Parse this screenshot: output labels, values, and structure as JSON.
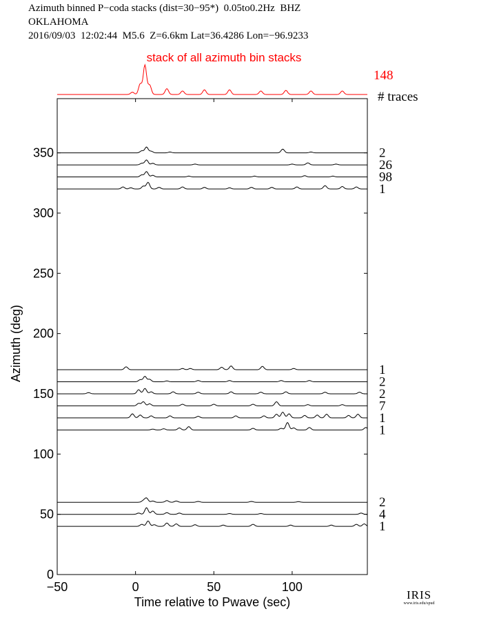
{
  "header": {
    "line1": "Azimuth binned P−coda stacks (dist=30−95*)  0.05to0.2Hz  BHZ",
    "line2": "OKLAHOMA",
    "line3": "2016/09/03  12:02:44  M5.6  Z=6.6km Lat=36.4286 Lon=−96.9233"
  },
  "logo": {
    "name": "IRIS",
    "url_text": "www.iris.edu/spud"
  },
  "colors": {
    "stack": "#ff0000",
    "trace": "#000000",
    "axis": "#000000"
  },
  "chart_data": {
    "type": "line",
    "title": "stack of all azimuth bin stacks",
    "xlabel": "Time relative to Pwave (sec)",
    "ylabel": "Azimuth (deg)",
    "xlim": [
      -50,
      148
    ],
    "ylim": [
      0,
      395
    ],
    "xticks": [
      -50,
      0,
      50,
      100
    ],
    "yticks": [
      0,
      50,
      100,
      150,
      200,
      250,
      300,
      350
    ],
    "xtick_labels": [
      "−50",
      "0",
      "50",
      "100"
    ],
    "ytick_labels": [
      "0",
      "50",
      "100",
      "150",
      "200",
      "250",
      "300",
      "350"
    ],
    "grid": false,
    "right_label": "# traces",
    "stack": {
      "name": "stack of all azimuth bin stacks",
      "traces": "148",
      "peaks": [
        [
          -2,
          0.2
        ],
        [
          3,
          0.9
        ],
        [
          6,
          2.5
        ],
        [
          9,
          0.8
        ],
        [
          20,
          0.5
        ],
        [
          30,
          0.3
        ],
        [
          44,
          0.4
        ],
        [
          60,
          0.4
        ],
        [
          80,
          0.3
        ],
        [
          96,
          0.35
        ],
        [
          112,
          0.3
        ],
        [
          132,
          0.3
        ]
      ]
    },
    "series": [
      {
        "name": "350",
        "azimuth": 350,
        "traces": "2",
        "peaks": [
          [
            4,
            0.5
          ],
          [
            7,
            1.4
          ],
          [
            10,
            0.4
          ],
          [
            22,
            0.2
          ],
          [
            94,
            0.9
          ],
          [
            112,
            0.2
          ]
        ]
      },
      {
        "name": "340",
        "azimuth": 340,
        "traces": "26",
        "peaks": [
          [
            4,
            0.4
          ],
          [
            7,
            1.2
          ],
          [
            11,
            0.4
          ],
          [
            38,
            0.2
          ],
          [
            100,
            0.2
          ],
          [
            110,
            0.5
          ],
          [
            128,
            0.2
          ]
        ]
      },
      {
        "name": "330",
        "azimuth": 330,
        "traces": "98",
        "peaks": [
          [
            4,
            0.5
          ],
          [
            7,
            1.3
          ],
          [
            11,
            0.4
          ],
          [
            34,
            0.2
          ],
          [
            76,
            0.2
          ],
          [
            108,
            0.3
          ],
          [
            126,
            0.2
          ]
        ]
      },
      {
        "name": "320",
        "azimuth": 320,
        "traces": "1",
        "peaks": [
          [
            -8,
            0.5
          ],
          [
            -3,
            0.3
          ],
          [
            5,
            0.7
          ],
          [
            8,
            1.6
          ],
          [
            15,
            0.4
          ],
          [
            30,
            0.5
          ],
          [
            44,
            0.4
          ],
          [
            60,
            0.3
          ],
          [
            74,
            0.4
          ],
          [
            87,
            0.4
          ],
          [
            103,
            0.5
          ],
          [
            121,
            0.8
          ],
          [
            132,
            0.6
          ],
          [
            141,
            0.5
          ]
        ]
      },
      {
        "name": "170",
        "azimuth": 170,
        "traces": "1",
        "peaks": [
          [
            -6,
            0.7
          ],
          [
            30,
            0.3
          ],
          [
            35,
            0.3
          ],
          [
            55,
            0.6
          ],
          [
            61,
            0.9
          ],
          [
            81,
            0.8
          ],
          [
            101,
            0.3
          ]
        ]
      },
      {
        "name": "160",
        "azimuth": 160,
        "traces": "2",
        "peaks": [
          [
            3,
            0.5
          ],
          [
            6,
            1.3
          ],
          [
            9,
            0.6
          ],
          [
            20,
            0.2
          ],
          [
            40,
            0.3
          ],
          [
            60,
            0.3
          ],
          [
            93,
            0.3
          ],
          [
            111,
            0.3
          ]
        ]
      },
      {
        "name": "150",
        "azimuth": 150,
        "traces": "2",
        "peaks": [
          [
            -30,
            0.3
          ],
          [
            2,
            1.0
          ],
          [
            6,
            1.3
          ],
          [
            10,
            0.5
          ],
          [
            24,
            0.5
          ],
          [
            40,
            0.4
          ],
          [
            61,
            0.5
          ],
          [
            80,
            0.4
          ],
          [
            96,
            0.5
          ],
          [
            121,
            0.4
          ],
          [
            143,
            0.4
          ]
        ]
      },
      {
        "name": "140",
        "azimuth": 140,
        "traces": "7",
        "peaks": [
          [
            2,
            0.6
          ],
          [
            5,
            1.0
          ],
          [
            9,
            0.5
          ],
          [
            30,
            0.4
          ],
          [
            50,
            0.4
          ],
          [
            75,
            0.4
          ],
          [
            90,
            1.0
          ],
          [
            110,
            0.3
          ],
          [
            132,
            0.3
          ]
        ]
      },
      {
        "name": "130",
        "azimuth": 130,
        "traces": "1",
        "peaks": [
          [
            -2,
            1.0
          ],
          [
            3,
            0.7
          ],
          [
            10,
            0.5
          ],
          [
            22,
            0.5
          ],
          [
            40,
            0.4
          ],
          [
            64,
            0.5
          ],
          [
            82,
            0.5
          ],
          [
            90,
            0.9
          ],
          [
            94,
            1.4
          ],
          [
            98,
            1.0
          ],
          [
            108,
            0.6
          ],
          [
            116,
            0.7
          ],
          [
            122,
            0.9
          ],
          [
            136,
            0.6
          ],
          [
            142,
            0.9
          ]
        ]
      },
      {
        "name": "120",
        "azimuth": 120,
        "traces": "1",
        "peaks": [
          [
            11,
            0.2
          ],
          [
            18,
            0.3
          ],
          [
            28,
            0.5
          ],
          [
            34,
            0.8
          ],
          [
            75,
            0.4
          ],
          [
            93,
            0.4
          ],
          [
            97,
            1.8
          ],
          [
            101,
            0.5
          ],
          [
            111,
            0.6
          ],
          [
            147,
            0.6
          ]
        ]
      },
      {
        "name": "60",
        "azimuth": 60,
        "traces": "2",
        "peaks": [
          [
            5,
            0.4
          ],
          [
            7,
            1.0
          ],
          [
            11,
            0.3
          ],
          [
            20,
            0.4
          ],
          [
            26,
            0.3
          ],
          [
            40,
            0.2
          ],
          [
            74,
            0.2
          ],
          [
            104,
            0.15
          ]
        ]
      },
      {
        "name": "50",
        "azimuth": 50,
        "traces": "4",
        "peaks": [
          [
            2,
            0.3
          ],
          [
            7,
            1.6
          ],
          [
            11,
            0.8
          ],
          [
            20,
            0.4
          ],
          [
            28,
            0.3
          ],
          [
            60,
            0.2
          ],
          [
            80,
            0.2
          ],
          [
            144,
            0.3
          ]
        ]
      },
      {
        "name": "40",
        "azimuth": 40,
        "traces": "1",
        "peaks": [
          [
            4,
            0.5
          ],
          [
            8,
            1.3
          ],
          [
            12,
            0.4
          ],
          [
            20,
            0.8
          ],
          [
            26,
            0.6
          ],
          [
            38,
            0.4
          ],
          [
            56,
            0.3
          ],
          [
            75,
            0.5
          ],
          [
            99,
            0.3
          ],
          [
            125,
            0.3
          ],
          [
            141,
            0.5
          ],
          [
            146,
            0.6
          ]
        ]
      }
    ]
  }
}
